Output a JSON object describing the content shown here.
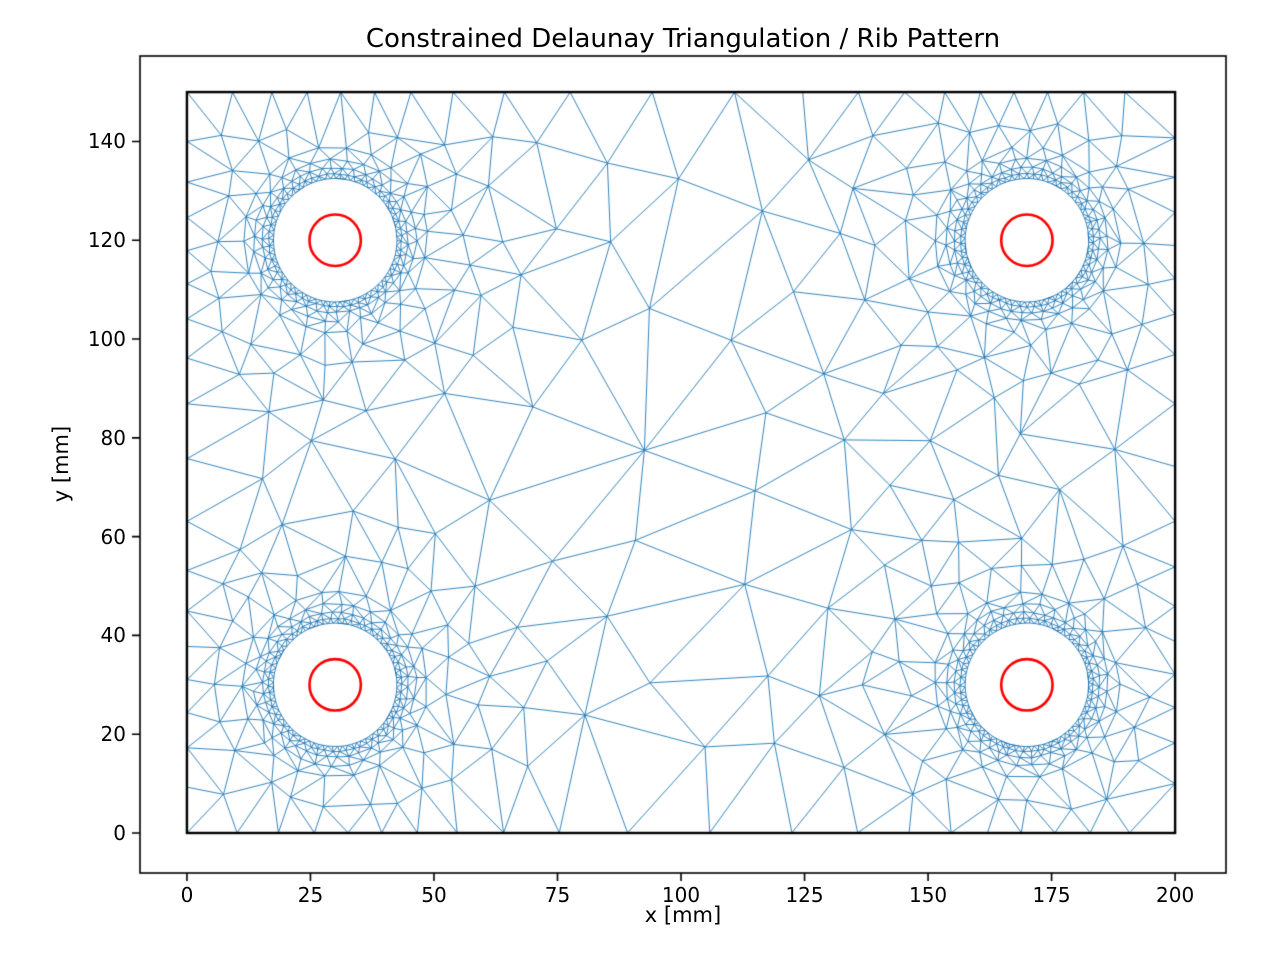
{
  "page": {
    "background": "#ffffff"
  },
  "chart_data": {
    "type": "triangulation",
    "title": "Constrained Delaunay Triangulation / Rib Pattern",
    "xlabel": "x [mm]",
    "ylabel": "y [mm]",
    "xticks": [
      0,
      25,
      50,
      75,
      100,
      125,
      150,
      175,
      200
    ],
    "yticks": [
      0,
      20,
      40,
      60,
      80,
      100,
      120,
      140
    ],
    "xlim": [
      -9.5,
      210.3
    ],
    "ylim": [
      -8.1,
      157.3
    ],
    "grid": false,
    "legend": null,
    "axis_color": "#000000",
    "tick_length": 8,
    "domain": {
      "x": [
        0,
        200
      ],
      "y": [
        0,
        150
      ],
      "border_color": "#000000",
      "border_width": 2.4
    },
    "holes": {
      "centers": [
        [
          30,
          30
        ],
        [
          170,
          30
        ],
        [
          30,
          120
        ],
        [
          170,
          120
        ]
      ],
      "hole_radius": 12.5,
      "inner_circle_radius": 5.2,
      "inner_circle_color": "#ff0000",
      "inner_circle_width": 2.6
    },
    "mesh": {
      "color": "#1f77b4",
      "line_width": 0.9,
      "seed": 20240613,
      "rings": [
        {
          "r": 12.5,
          "n": 80,
          "aj": 0.12,
          "rj": 0.05
        },
        {
          "r": 13.45,
          "n": 58,
          "aj": 0.3,
          "rj": 0.25
        },
        {
          "r": 14.7,
          "n": 42,
          "aj": 0.35,
          "rj": 0.35
        },
        {
          "r": 16.4,
          "n": 30,
          "aj": 0.4,
          "rj": 0.5
        },
        {
          "r": 18.8,
          "n": 22,
          "aj": 0.45,
          "rj": 0.7
        }
      ],
      "clear": 8.3,
      "h0": 2.2,
      "grad": 0.42,
      "hmax": 23,
      "edge_h0": 2.0,
      "edge_grad": 0.28,
      "edge_hmax": 17,
      "attempts": 4200
    }
  }
}
